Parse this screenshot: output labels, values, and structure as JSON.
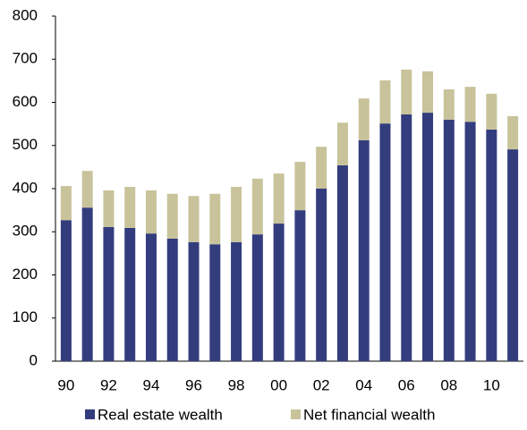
{
  "chart_data": {
    "type": "stacked_bar",
    "categories": [
      "90",
      null,
      "92",
      null,
      "94",
      null,
      "96",
      null,
      "98",
      null,
      "00",
      null,
      "02",
      null,
      "04",
      null,
      "06",
      null,
      "08",
      null,
      "10",
      null
    ],
    "series": [
      {
        "name": "Real estate wealth",
        "color": "#333d7e",
        "values": [
          327,
          356,
          311,
          309,
          296,
          284,
          276,
          271,
          276,
          294,
          319,
          350,
          400,
          454,
          512,
          551,
          572,
          576,
          560,
          555,
          537,
          491
        ]
      },
      {
        "name": "Net financial wealth",
        "color": "#c8c39b",
        "values": [
          79,
          85,
          85,
          95,
          100,
          104,
          107,
          117,
          128,
          129,
          116,
          112,
          97,
          99,
          97,
          100,
          104,
          96,
          70,
          81,
          83,
          77
        ]
      }
    ],
    "ylim": [
      0,
      800
    ],
    "yticks": [
      0,
      100,
      200,
      300,
      400,
      500,
      600,
      700,
      800
    ]
  }
}
